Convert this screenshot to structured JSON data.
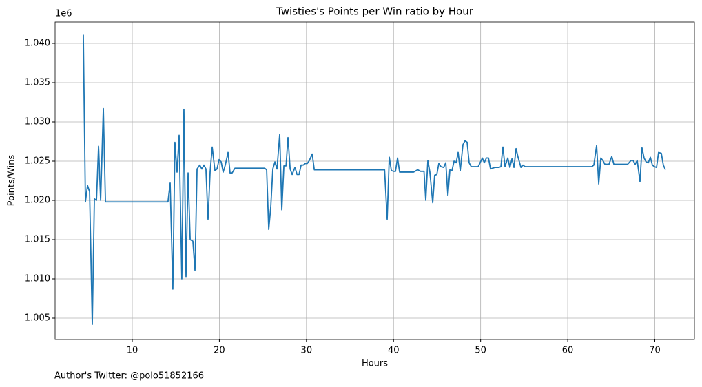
{
  "chart_data": {
    "type": "line",
    "title": "Twisties's Points per Win ratio by Hour",
    "x_label": "Hours",
    "y_label": "Points/Wins",
    "y_offset_label": "1e6",
    "footnote": "Author's Twitter: @polo51852166",
    "color": "#1f77b4",
    "grid": true,
    "xlim": [
      1.14,
      74.55
    ],
    "ylim": [
      1002280,
      1042720
    ],
    "xticks": [
      10,
      20,
      30,
      40,
      50,
      60,
      70
    ],
    "yticks": [
      {
        "value": 1005000,
        "label": "1.005"
      },
      {
        "value": 1010000,
        "label": "1.010"
      },
      {
        "value": 1015000,
        "label": "1.015"
      },
      {
        "value": 1020000,
        "label": "1.020"
      },
      {
        "value": 1025000,
        "label": "1.025"
      },
      {
        "value": 1030000,
        "label": "1.030"
      },
      {
        "value": 1035000,
        "label": "1.035"
      },
      {
        "value": 1040000,
        "label": "1.040"
      }
    ],
    "x": [
      4.38,
      4.62,
      4.86,
      5.1,
      5.41,
      5.65,
      5.89,
      6.13,
      6.37,
      6.68,
      6.92,
      14.1,
      14.35,
      14.66,
      14.9,
      15.14,
      15.38,
      15.69,
      15.93,
      16.17,
      16.41,
      16.65,
      16.96,
      17.2,
      17.44,
      17.75,
      17.99,
      18.23,
      18.46,
      18.7,
      18.94,
      19.18,
      19.49,
      19.73,
      19.97,
      20.21,
      20.44,
      20.68,
      21.0,
      21.23,
      21.47,
      21.79,
      25.2,
      25.43,
      25.67,
      25.9,
      26.14,
      26.38,
      26.62,
      26.93,
      27.17,
      27.41,
      27.66,
      27.88,
      28.13,
      28.36,
      28.68,
      28.92,
      29.15,
      29.39,
      29.63,
      29.86,
      30.1,
      30.34,
      30.66,
      30.9,
      38.97,
      39.27,
      39.51,
      39.75,
      40.0,
      40.22,
      40.46,
      40.7,
      42.3,
      42.77,
      43.1,
      43.5,
      43.7,
      43.94,
      44.17,
      44.5,
      44.72,
      44.97,
      45.2,
      45.44,
      45.76,
      46.0,
      46.24,
      46.47,
      46.71,
      46.95,
      47.19,
      47.42,
      47.66,
      47.97,
      48.21,
      48.45,
      48.68,
      48.92,
      49.72,
      50.2,
      50.42,
      50.66,
      50.9,
      51.14,
      51.38,
      51.61,
      51.85,
      52.09,
      52.33,
      52.56,
      52.8,
      53.12,
      53.36,
      53.6,
      53.83,
      54.07,
      54.3,
      54.63,
      54.86,
      55.1,
      62.77,
      63.0,
      63.32,
      63.56,
      63.8,
      64.03,
      64.27,
      64.74,
      65.06,
      65.3,
      66.88,
      67.28,
      67.5,
      67.75,
      67.98,
      68.3,
      68.53,
      68.77,
      69.0,
      69.25,
      69.49,
      69.72,
      69.96,
      70.2,
      70.43,
      70.75,
      70.98,
      71.22
    ],
    "values": [
      1041100,
      1019800,
      1021900,
      1021100,
      1004200,
      1020200,
      1020000,
      1026900,
      1020000,
      1031700,
      1019800,
      1019800,
      1022200,
      1008700,
      1027400,
      1023600,
      1028300,
      1010000,
      1031600,
      1010300,
      1023500,
      1015000,
      1014800,
      1011100,
      1024000,
      1024500,
      1024000,
      1024500,
      1024000,
      1017600,
      1023600,
      1026800,
      1023800,
      1024000,
      1025200,
      1024900,
      1023600,
      1024500,
      1026100,
      1023500,
      1023500,
      1024100,
      1024100,
      1023900,
      1016300,
      1019100,
      1024000,
      1024900,
      1024000,
      1028400,
      1018800,
      1024400,
      1024400,
      1028000,
      1024000,
      1023300,
      1024200,
      1023300,
      1023300,
      1024500,
      1024500,
      1024700,
      1024700,
      1025100,
      1025900,
      1023900,
      1023900,
      1017600,
      1025500,
      1023800,
      1023700,
      1023700,
      1025400,
      1023600,
      1023600,
      1023900,
      1023700,
      1023700,
      1020000,
      1025100,
      1023600,
      1019700,
      1023200,
      1023300,
      1024700,
      1024300,
      1024200,
      1024800,
      1020600,
      1023900,
      1023800,
      1025000,
      1024800,
      1026100,
      1023800,
      1027100,
      1027600,
      1027400,
      1024800,
      1024300,
      1024300,
      1025400,
      1024800,
      1025400,
      1025400,
      1024000,
      1024100,
      1024200,
      1024200,
      1024200,
      1024300,
      1026800,
      1024300,
      1025400,
      1024200,
      1025300,
      1024200,
      1026600,
      1025500,
      1024200,
      1024500,
      1024300,
      1024300,
      1024500,
      1027000,
      1022100,
      1025400,
      1025100,
      1024600,
      1024600,
      1025600,
      1024600,
      1024600,
      1025100,
      1025100,
      1024600,
      1025100,
      1022400,
      1026700,
      1025400,
      1024900,
      1024800,
      1025500,
      1024500,
      1024300,
      1024200,
      1026100,
      1026000,
      1024500,
      1023900
    ]
  }
}
